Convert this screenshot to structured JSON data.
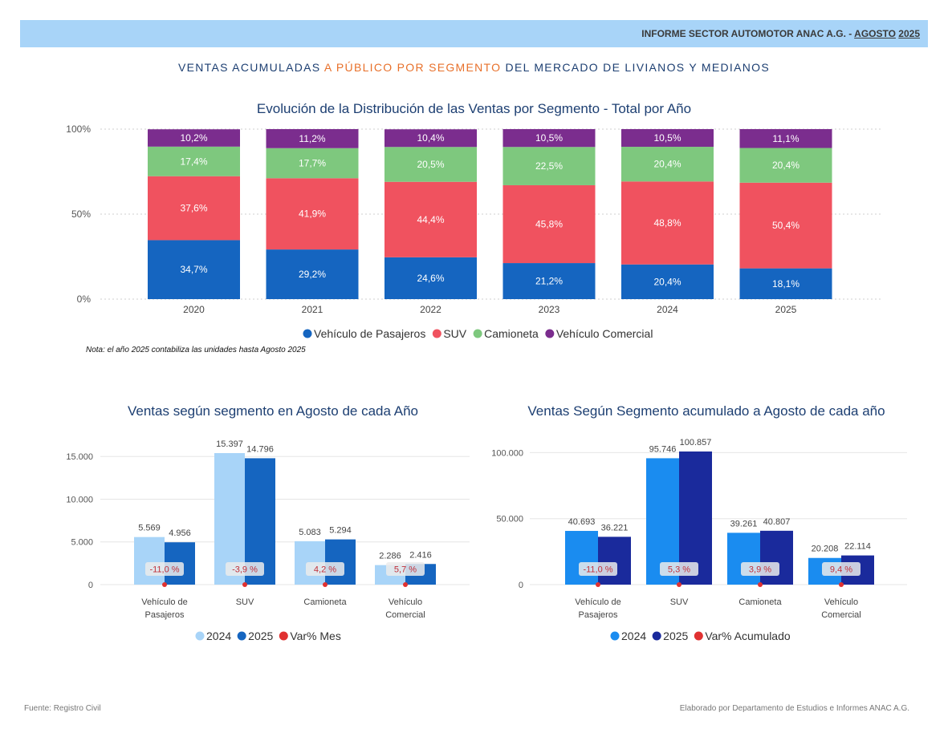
{
  "header": {
    "prefix": "INFORME SECTOR AUTOMOTOR ANAC A.G. - ",
    "month": "AGOSTO",
    "year": "2025"
  },
  "page_title": {
    "part1": "VENTAS ACUMULADAS ",
    "highlight": "A PÚBLICO POR SEGMENTO",
    "part2": " DEL MERCADO DE LIVIANOS Y MEDIANOS"
  },
  "note": "Nota: el año 2025 contabiliza las unidades hasta Agosto 2025",
  "footer": {
    "source": "Fuente: Registro Civil",
    "credit": "Elaborado por Departamento de Estudios e Informes ANAC A.G."
  },
  "colors": {
    "pasajeros": "#1565c0",
    "suv": "#f0525f",
    "camioneta": "#7ec87e",
    "comercial": "#7b2d8e"
  },
  "chart_data": [
    {
      "type": "bar",
      "stacked": true,
      "title": "Evolución de la Distribución de las Ventas por Segmento - Total por Año",
      "categories": [
        "2020",
        "2021",
        "2022",
        "2023",
        "2024",
        "2025"
      ],
      "ylim": [
        0,
        100
      ],
      "yticks": [
        "0%",
        "50%",
        "100%"
      ],
      "series": [
        {
          "name": "Vehículo de Pasajeros",
          "color": "#1565c0",
          "values": [
            34.7,
            29.2,
            24.6,
            21.2,
            20.4,
            18.1
          ],
          "labels": [
            "34,7%",
            "29,2%",
            "24,6%",
            "21,2%",
            "20,4%",
            "18,1%"
          ]
        },
        {
          "name": "SUV",
          "color": "#f0525f",
          "values": [
            37.6,
            41.9,
            44.4,
            45.8,
            48.8,
            50.4
          ],
          "labels": [
            "37,6%",
            "41,9%",
            "44,4%",
            "45,8%",
            "48,8%",
            "50,4%"
          ]
        },
        {
          "name": "Camioneta",
          "color": "#7ec87e",
          "values": [
            17.4,
            17.7,
            20.5,
            22.5,
            20.4,
            20.4
          ],
          "labels": [
            "17,4%",
            "17,7%",
            "20,5%",
            "22,5%",
            "20,4%",
            "20,4%"
          ]
        },
        {
          "name": "Vehículo Comercial",
          "color": "#7b2d8e",
          "values": [
            10.2,
            11.2,
            10.4,
            10.5,
            10.5,
            11.1
          ],
          "labels": [
            "10,2%",
            "11,2%",
            "10,4%",
            "10,5%",
            "10,5%",
            "11,1%"
          ]
        }
      ]
    },
    {
      "type": "bar",
      "title": "Ventas según segmento en Agosto de cada Año",
      "categories": [
        [
          "Vehículo de",
          "Pasajeros"
        ],
        [
          "SUV"
        ],
        [
          "Camioneta"
        ],
        [
          "Vehículo",
          "Comercial"
        ]
      ],
      "ylim": [
        0,
        15397
      ],
      "yticks": [
        0,
        5000,
        10000,
        15000
      ],
      "ytick_labels": [
        "0",
        "5.000",
        "10.000",
        "15.000"
      ],
      "series": [
        {
          "name": "2024",
          "color": "#a8d4f8",
          "values": [
            5569,
            15397,
            5083,
            2286
          ],
          "labels": [
            "5.569",
            "15.397",
            "5.083",
            "2.286"
          ]
        },
        {
          "name": "2025",
          "color": "#1565c0",
          "values": [
            4956,
            14796,
            5294,
            2416
          ],
          "labels": [
            "4.956",
            "14.796",
            "5.294",
            "2.416"
          ]
        }
      ],
      "variation": {
        "name": "Var% Mes",
        "color": "#e03131",
        "values": [
          -11.0,
          -3.9,
          4.2,
          5.7
        ],
        "labels": [
          "-11,0 %",
          "-3,9 %",
          "4,2 %",
          "5,7 %"
        ]
      }
    },
    {
      "type": "bar",
      "title": "Ventas Según Segmento acumulado a Agosto de cada año",
      "categories": [
        [
          "Vehículo de",
          "Pasajeros"
        ],
        [
          "SUV"
        ],
        [
          "Camioneta"
        ],
        [
          "Vehículo",
          "Comercial"
        ]
      ],
      "ylim": [
        0,
        100857
      ],
      "yticks": [
        0,
        50000,
        100000
      ],
      "ytick_labels": [
        "0",
        "50.000",
        "100.000"
      ],
      "series": [
        {
          "name": "2024",
          "color": "#1a8cf0",
          "values": [
            40693,
            95746,
            39261,
            20208
          ],
          "labels": [
            "40.693",
            "95.746",
            "39.261",
            "20.208"
          ]
        },
        {
          "name": "2025",
          "color": "#1a2a9c",
          "values": [
            36221,
            100857,
            40807,
            22114
          ],
          "labels": [
            "36.221",
            "100.857",
            "40.807",
            "22.114"
          ]
        }
      ],
      "variation": {
        "name": "Var% Acumulado",
        "color": "#e03131",
        "values": [
          -11.0,
          5.3,
          3.9,
          9.4
        ],
        "labels": [
          "-11,0 %",
          "5,3 %",
          "3,9 %",
          "9,4 %"
        ]
      }
    }
  ]
}
